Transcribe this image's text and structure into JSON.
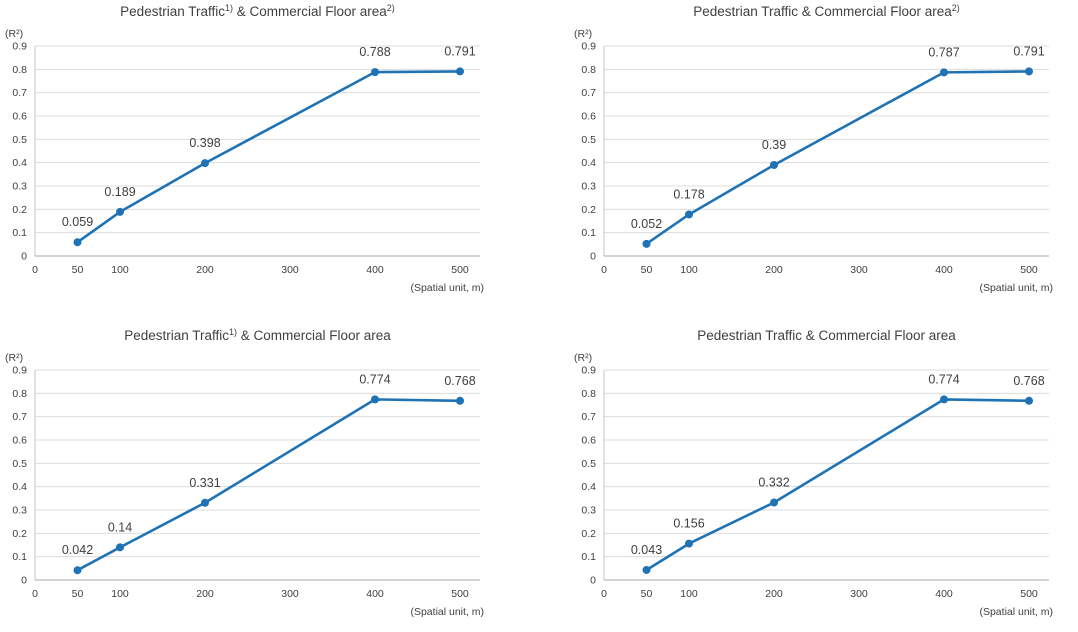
{
  "colors": {
    "line": "#1f73b4",
    "marker": "#1f73b4",
    "grid": "#dcdcdc",
    "axis_left": "#c6c6c6",
    "axis_bottom": "#a8a8a8",
    "tick_text": "#404040",
    "title_text": "#3d3d3d",
    "data_label_text": "#303030",
    "background": "#ffffff"
  },
  "chart_data": [
    {
      "type": "line",
      "title_segments": [
        {
          "text": "Pedestrian Traffic",
          "sup": false
        },
        {
          "text": "1)",
          "sup": true
        },
        {
          "text": " & Commercial Floor area",
          "sup": false
        },
        {
          "text": "2)",
          "sup": true
        }
      ],
      "x": [
        50,
        100,
        200,
        400,
        500
      ],
      "values": [
        0.059,
        0.189,
        0.398,
        0.788,
        0.791
      ],
      "data_labels": [
        "0.059",
        "0.189",
        "0.398",
        "0.788",
        "0.791"
      ],
      "xlabel": "(Spatial unit, m)",
      "ylabel": "(R²)",
      "x_ticks": [
        0,
        50,
        100,
        200,
        300,
        400,
        500
      ],
      "ylim": [
        0,
        0.9
      ],
      "y_tick_labels": [
        "0.9",
        "0.8",
        "0.7",
        "0.6",
        "0.5",
        "0.4",
        "0.3",
        "0.2",
        "0.1",
        "0"
      ],
      "grid": true,
      "legend": "none",
      "marker": "circle"
    },
    {
      "type": "line",
      "title_segments": [
        {
          "text": "Pedestrian Traffic & Commercial Floor area",
          "sup": false
        },
        {
          "text": "2)",
          "sup": true
        }
      ],
      "x": [
        50,
        100,
        200,
        400,
        500
      ],
      "values": [
        0.052,
        0.178,
        0.39,
        0.787,
        0.791
      ],
      "data_labels": [
        "0.052",
        "0.178",
        "0.39",
        "0.787",
        "0.791"
      ],
      "xlabel": "(Spatial unit, m)",
      "ylabel": "(R²)",
      "x_ticks": [
        0,
        50,
        100,
        200,
        300,
        400,
        500
      ],
      "ylim": [
        0,
        0.9
      ],
      "y_tick_labels": [
        "0.9",
        "0.8",
        "0.7",
        "0.6",
        "0.5",
        "0.4",
        "0.3",
        "0.2",
        "0.1",
        "0"
      ],
      "grid": true,
      "legend": "none",
      "marker": "circle"
    },
    {
      "type": "line",
      "title_segments": [
        {
          "text": "Pedestrian Traffic",
          "sup": false
        },
        {
          "text": "1)",
          "sup": true
        },
        {
          "text": " & Commercial Floor area",
          "sup": false
        }
      ],
      "x": [
        50,
        100,
        200,
        400,
        500
      ],
      "values": [
        0.042,
        0.14,
        0.331,
        0.774,
        0.768
      ],
      "data_labels": [
        "0.042",
        "0.14",
        "0.331",
        "0.774",
        "0.768"
      ],
      "xlabel": "(Spatial unit, m)",
      "ylabel": "(R²)",
      "x_ticks": [
        0,
        50,
        100,
        200,
        300,
        400,
        500
      ],
      "ylim": [
        0,
        0.9
      ],
      "y_tick_labels": [
        "0.9",
        "0.8",
        "0.7",
        "0.6",
        "0.5",
        "0.4",
        "0.3",
        "0.2",
        "0.1",
        "0"
      ],
      "grid": true,
      "legend": "none",
      "marker": "circle"
    },
    {
      "type": "line",
      "title_segments": [
        {
          "text": "Pedestrian Traffic & Commercial Floor area",
          "sup": false
        }
      ],
      "x": [
        50,
        100,
        200,
        400,
        500
      ],
      "values": [
        0.043,
        0.156,
        0.332,
        0.774,
        0.768
      ],
      "data_labels": [
        "0.043",
        "0.156",
        "0.332",
        "0.774",
        "0.768"
      ],
      "xlabel": "(Spatial unit, m)",
      "ylabel": "(R²)",
      "x_ticks": [
        0,
        50,
        100,
        200,
        300,
        400,
        500
      ],
      "ylim": [
        0,
        0.9
      ],
      "y_tick_labels": [
        "0.9",
        "0.8",
        "0.7",
        "0.6",
        "0.5",
        "0.4",
        "0.3",
        "0.2",
        "0.1",
        "0"
      ],
      "grid": true,
      "legend": "none",
      "marker": "circle"
    }
  ]
}
